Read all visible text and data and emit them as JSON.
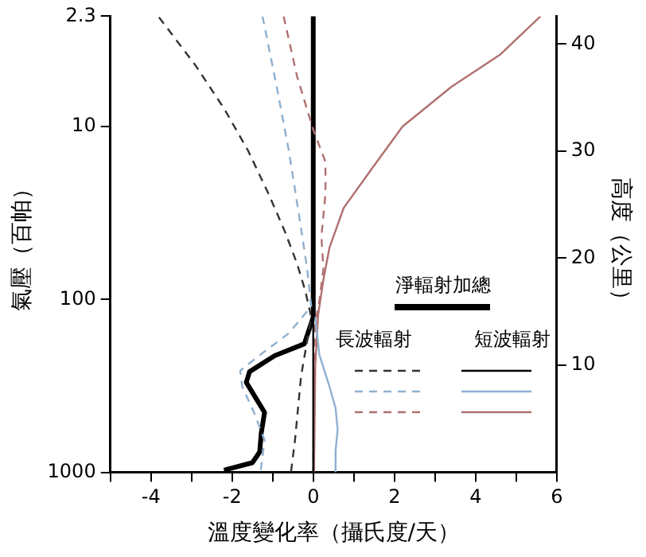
{
  "chart_data": {
    "type": "line",
    "xlabel": "溫度變化率（攝氏度/天）",
    "ylabel": "氣壓（百帕）",
    "y2label": "高度（公里）",
    "xlim": [
      -5,
      6
    ],
    "xticks": [
      {
        "value": -5,
        "label": null
      },
      -4,
      {
        "value": -3,
        "label": null
      },
      -2,
      {
        "value": -1,
        "label": null
      },
      0,
      {
        "value": 1,
        "label": null
      },
      2,
      {
        "value": 3,
        "label": null
      },
      4,
      {
        "value": 5,
        "label": null
      },
      6
    ],
    "ylim": [
      1000,
      2.3
    ],
    "yticks": [
      1000,
      100,
      10,
      2.3
    ],
    "log": "y",
    "y2lim": [
      0,
      42.6
    ],
    "y2ticks": [
      10,
      20,
      30,
      40
    ],
    "grid": false,
    "legend": "bottom right",
    "annotations": [
      "長波輻射",
      "短波輻射"
    ],
    "series": [
      {
        "color": "#333333",
        "line_style": "dashed",
        "axis": "y2",
        "x": [
          -3.8,
          -2.9,
          -2.2,
          -1.6,
          -1.1,
          -0.7,
          -0.4,
          -0.2,
          -0.05,
          -0.3,
          -0.45,
          -0.55
        ],
        "values": [
          42.5,
          38,
          34,
          30,
          26,
          22.5,
          19.5,
          17,
          14.5,
          9,
          3,
          0
        ]
      },
      {
        "color": "#000000",
        "line_style": "solid",
        "axis": "y2",
        "x": [
          0,
          0
        ],
        "values": [
          0,
          14.5
        ]
      },
      {
        "color": "#8fb0d0",
        "line_style": "dashed",
        "axis": "y2",
        "x": [
          -1.25,
          -0.9,
          -0.6,
          -0.35,
          -0.15,
          -0.05,
          -0.6,
          -1.3,
          -1.8,
          -1.75,
          -1.45,
          -1.2,
          -1.3
        ],
        "values": [
          42.6,
          36,
          30,
          24,
          19,
          15.5,
          13,
          11,
          9.5,
          8,
          5.5,
          3,
          0
        ]
      },
      {
        "color": "#8fb0d0",
        "line_style": "solid",
        "axis": "y2",
        "x": [
          0.05,
          0.15,
          0.4,
          0.55,
          0.6,
          0.55,
          0.55
        ],
        "values": [
          14.5,
          11,
          8,
          6,
          4,
          2,
          0
        ]
      },
      {
        "color": "#b07070",
        "line_style": "dashed",
        "axis": "y2",
        "x": [
          -0.73,
          -0.4,
          0,
          0.3,
          0.3,
          0.2,
          0.25,
          0.15,
          0.05,
          0.02,
          0
        ],
        "values": [
          42.6,
          37,
          32,
          29,
          26,
          22,
          19,
          16,
          14,
          10,
          0
        ]
      },
      {
        "color": "#b07070",
        "line_style": "solid",
        "axis": "y2",
        "x": [
          5.6,
          4.6,
          3.4,
          2.2,
          1.45,
          0.75,
          0.4,
          0.25,
          0.12,
          0.05,
          0.02
        ],
        "values": [
          42.6,
          39,
          36,
          32.3,
          28.4,
          24.7,
          21,
          18,
          14.7,
          10,
          0
        ]
      },
      {
        "name": "淨輻射加總",
        "color": "#000000",
        "line_style": "solid",
        "axis": "y2",
        "x": [
          0,
          0,
          -0.22,
          -0.95,
          -1.57,
          -1.65,
          -1.2,
          -1.28,
          -1.32,
          -1.5,
          -2.2
        ],
        "values": [
          42.6,
          14.5,
          12,
          10.9,
          9.4,
          8.4,
          5.6,
          3.7,
          1.9,
          0.9,
          0.2
        ]
      }
    ]
  }
}
